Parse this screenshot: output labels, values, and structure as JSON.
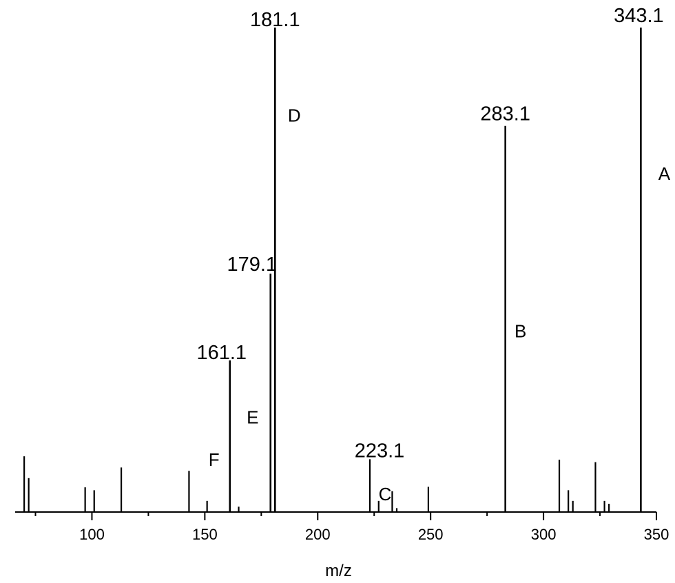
{
  "chart_data": {
    "type": "bar",
    "xlabel": "m/z",
    "xlim": [
      66,
      350
    ],
    "ylim": [
      0,
      100
    ],
    "x_ticks": [
      100,
      150,
      200,
      250,
      300,
      350
    ],
    "peaks": [
      {
        "x": 70,
        "y": 11.5
      },
      {
        "x": 72,
        "y": 7.0
      },
      {
        "x": 97,
        "y": 5.1
      },
      {
        "x": 101,
        "y": 4.5
      },
      {
        "x": 113,
        "y": 9.2
      },
      {
        "x": 143,
        "y": 8.5
      },
      {
        "x": 151,
        "y": 2.3
      },
      {
        "x": 161.1,
        "y": 31.3
      },
      {
        "x": 165,
        "y": 1.1
      },
      {
        "x": 179.1,
        "y": 49.2
      },
      {
        "x": 181.1,
        "y": 100
      },
      {
        "x": 223.1,
        "y": 10.9
      },
      {
        "x": 227,
        "y": 2.3
      },
      {
        "x": 233,
        "y": 4.3
      },
      {
        "x": 235,
        "y": 0.8
      },
      {
        "x": 249,
        "y": 5.2
      },
      {
        "x": 283.1,
        "y": 79.7
      },
      {
        "x": 307,
        "y": 10.8
      },
      {
        "x": 311,
        "y": 4.5
      },
      {
        "x": 313,
        "y": 2.3
      },
      {
        "x": 323,
        "y": 10.3
      },
      {
        "x": 327,
        "y": 2.3
      },
      {
        "x": 329,
        "y": 1.7
      },
      {
        "x": 343.1,
        "y": 100
      }
    ],
    "annotations": [
      {
        "peak": "343.1",
        "letter": "A"
      },
      {
        "peak": "283.1",
        "letter": "B"
      },
      {
        "peak": "223.1",
        "letter": "C"
      },
      {
        "peak": "181.1",
        "letter": "D"
      },
      {
        "peak": "179.1",
        "letter": "E"
      },
      {
        "peak": "161.1",
        "letter": "F"
      }
    ]
  }
}
